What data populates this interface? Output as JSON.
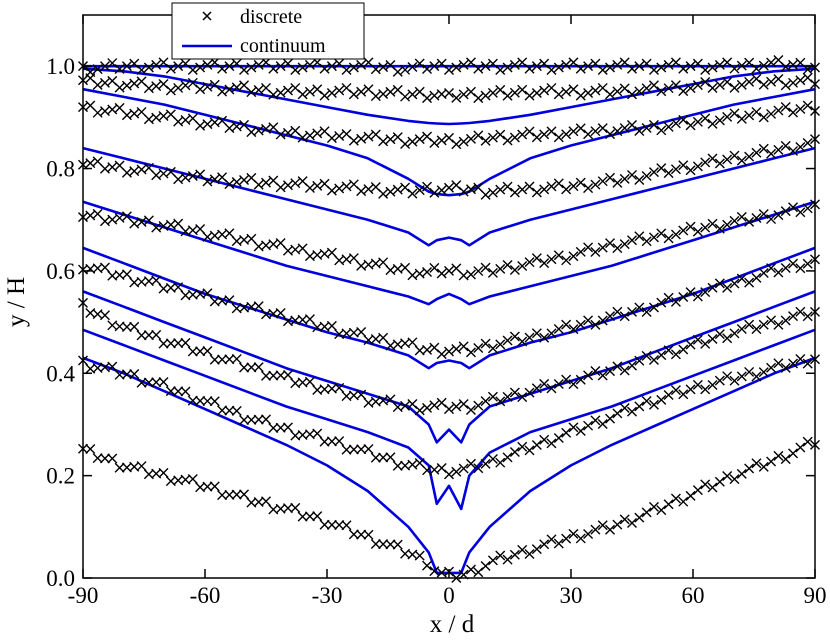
{
  "chart_data": {
    "type": "line",
    "title": "",
    "xlabel": "x / d",
    "ylabel": "y / H",
    "xlim": [
      -90,
      90
    ],
    "ylim": [
      0,
      1.1
    ],
    "x_ticks": [
      -90,
      -60,
      -30,
      0,
      30,
      60,
      90
    ],
    "x_tick_labels": [
      "-90",
      "-60",
      "-30",
      "0",
      "30",
      "60",
      "90"
    ],
    "y_ticks": [
      0,
      0.2,
      0.4,
      0.6,
      0.8,
      1.0
    ],
    "y_tick_labels": [
      "0.0",
      "0.2",
      "0.4",
      "0.6",
      "0.8",
      "1.0"
    ],
    "grid": false,
    "legend": {
      "position": "top-left",
      "entries": [
        {
          "label": "discrete",
          "marker": "x",
          "color": "#000000"
        },
        {
          "label": "continuum",
          "marker": "line",
          "color": "#0000dd"
        }
      ]
    },
    "x": [
      -90,
      -80,
      -70,
      -60,
      -50,
      -40,
      -30,
      -20,
      -10,
      -5,
      -3,
      0,
      3,
      5,
      10,
      20,
      30,
      40,
      50,
      60,
      70,
      80,
      90
    ],
    "series": [
      {
        "name": "continuum",
        "values": [
          1.0,
          1.0,
          1.0,
          1.0,
          1.0,
          1.0,
          1.0,
          1.0,
          1.0,
          1.0,
          1.0,
          1.0,
          1.0,
          1.0,
          1.0,
          1.0,
          1.0,
          1.0,
          1.0,
          1.0,
          1.0,
          1.0,
          1.0
        ]
      },
      {
        "name": "continuum",
        "values": [
          0.995,
          0.99,
          0.98,
          0.965,
          0.95,
          0.935,
          0.92,
          0.905,
          0.893,
          0.889,
          0.888,
          0.887,
          0.888,
          0.889,
          0.893,
          0.905,
          0.92,
          0.935,
          0.95,
          0.965,
          0.98,
          0.99,
          0.995
        ]
      },
      {
        "name": "continuum",
        "values": [
          0.955,
          0.94,
          0.925,
          0.905,
          0.885,
          0.865,
          0.845,
          0.82,
          0.78,
          0.755,
          0.75,
          0.748,
          0.75,
          0.755,
          0.78,
          0.82,
          0.845,
          0.865,
          0.885,
          0.905,
          0.925,
          0.94,
          0.955
        ]
      },
      {
        "name": "continuum",
        "values": [
          0.84,
          0.82,
          0.8,
          0.78,
          0.76,
          0.74,
          0.72,
          0.7,
          0.675,
          0.65,
          0.66,
          0.665,
          0.66,
          0.65,
          0.675,
          0.7,
          0.72,
          0.74,
          0.76,
          0.78,
          0.8,
          0.82,
          0.84
        ]
      },
      {
        "name": "continuum",
        "values": [
          0.735,
          0.71,
          0.685,
          0.66,
          0.635,
          0.61,
          0.59,
          0.57,
          0.55,
          0.535,
          0.545,
          0.555,
          0.545,
          0.535,
          0.55,
          0.57,
          0.59,
          0.61,
          0.635,
          0.66,
          0.685,
          0.71,
          0.735
        ]
      },
      {
        "name": "continuum",
        "values": [
          0.645,
          0.615,
          0.585,
          0.555,
          0.53,
          0.505,
          0.48,
          0.46,
          0.435,
          0.41,
          0.42,
          0.425,
          0.42,
          0.41,
          0.435,
          0.46,
          0.48,
          0.505,
          0.53,
          0.555,
          0.585,
          0.615,
          0.645
        ]
      },
      {
        "name": "continuum",
        "values": [
          0.56,
          0.53,
          0.5,
          0.47,
          0.44,
          0.41,
          0.385,
          0.36,
          0.335,
          0.3,
          0.265,
          0.29,
          0.265,
          0.3,
          0.335,
          0.36,
          0.385,
          0.41,
          0.44,
          0.47,
          0.5,
          0.53,
          0.56
        ]
      },
      {
        "name": "continuum",
        "values": [
          0.485,
          0.455,
          0.425,
          0.395,
          0.365,
          0.335,
          0.31,
          0.285,
          0.255,
          0.22,
          0.145,
          0.18,
          0.135,
          0.2,
          0.245,
          0.285,
          0.31,
          0.335,
          0.365,
          0.395,
          0.425,
          0.455,
          0.485
        ]
      },
      {
        "name": "continuum",
        "values": [
          0.43,
          0.4,
          0.365,
          0.33,
          0.295,
          0.26,
          0.22,
          0.17,
          0.1,
          0.05,
          0.01,
          0.01,
          0.01,
          0.05,
          0.1,
          0.17,
          0.22,
          0.26,
          0.295,
          0.33,
          0.365,
          0.4,
          0.43
        ]
      },
      {
        "name": "discrete",
        "values": [
          0.995,
          1.0,
          1.0,
          1.0,
          1.0,
          1.0,
          1.0,
          1.0,
          0.995,
          1.0,
          1.0,
          1.0,
          1.0,
          1.0,
          1.0,
          1.0,
          1.0,
          1.0,
          1.0,
          1.0,
          1.0,
          1.005,
          1.0
        ]
      },
      {
        "name": "discrete",
        "values": [
          0.97,
          0.965,
          0.96,
          0.96,
          0.955,
          0.95,
          0.95,
          0.95,
          0.945,
          0.945,
          0.945,
          0.94,
          0.945,
          0.945,
          0.945,
          0.95,
          0.95,
          0.95,
          0.955,
          0.96,
          0.965,
          0.97,
          0.97
        ]
      },
      {
        "name": "discrete",
        "values": [
          0.92,
          0.91,
          0.9,
          0.89,
          0.88,
          0.87,
          0.865,
          0.86,
          0.855,
          0.855,
          0.855,
          0.855,
          0.855,
          0.855,
          0.86,
          0.865,
          0.87,
          0.875,
          0.88,
          0.89,
          0.9,
          0.91,
          0.92
        ]
      },
      {
        "name": "discrete",
        "values": [
          0.81,
          0.8,
          0.79,
          0.78,
          0.775,
          0.77,
          0.765,
          0.76,
          0.755,
          0.76,
          0.76,
          0.76,
          0.76,
          0.76,
          0.755,
          0.76,
          0.765,
          0.775,
          0.79,
          0.805,
          0.82,
          0.835,
          0.85
        ]
      },
      {
        "name": "discrete",
        "values": [
          0.71,
          0.7,
          0.69,
          0.675,
          0.66,
          0.645,
          0.63,
          0.615,
          0.6,
          0.595,
          0.6,
          0.6,
          0.6,
          0.595,
          0.6,
          0.615,
          0.63,
          0.65,
          0.665,
          0.68,
          0.695,
          0.71,
          0.725
        ]
      },
      {
        "name": "discrete",
        "values": [
          0.61,
          0.59,
          0.57,
          0.55,
          0.53,
          0.51,
          0.49,
          0.47,
          0.455,
          0.445,
          0.445,
          0.445,
          0.445,
          0.445,
          0.455,
          0.47,
          0.49,
          0.51,
          0.53,
          0.555,
          0.575,
          0.6,
          0.62
        ]
      },
      {
        "name": "discrete",
        "values": [
          0.53,
          0.49,
          0.465,
          0.44,
          0.415,
          0.39,
          0.37,
          0.35,
          0.335,
          0.335,
          0.335,
          0.335,
          0.335,
          0.335,
          0.345,
          0.365,
          0.385,
          0.405,
          0.43,
          0.455,
          0.48,
          0.5,
          0.52
        ]
      },
      {
        "name": "discrete",
        "values": [
          0.42,
          0.4,
          0.375,
          0.345,
          0.315,
          0.29,
          0.27,
          0.245,
          0.22,
          0.215,
          0.21,
          0.21,
          0.21,
          0.215,
          0.225,
          0.255,
          0.285,
          0.315,
          0.345,
          0.37,
          0.39,
          0.41,
          0.43
        ]
      },
      {
        "name": "discrete",
        "values": [
          0.25,
          0.22,
          0.2,
          0.18,
          0.155,
          0.135,
          0.11,
          0.08,
          0.05,
          0.03,
          0.01,
          0.005,
          0.005,
          0.01,
          0.03,
          0.055,
          0.08,
          0.1,
          0.13,
          0.165,
          0.2,
          0.23,
          0.265
        ]
      }
    ]
  }
}
